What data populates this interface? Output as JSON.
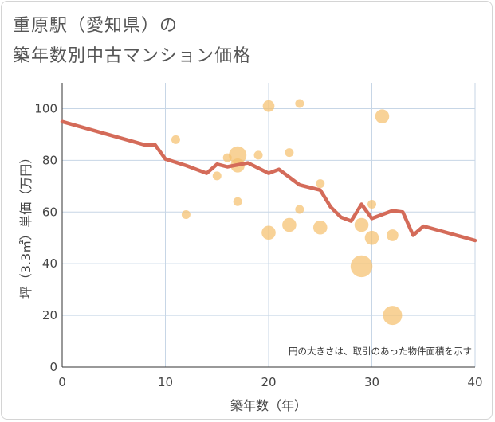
{
  "title_lines": [
    "重原駅（愛知県）の",
    "築年数別中古マンション価格"
  ],
  "chart_data": {
    "type": "scatter",
    "title": "重原駅（愛知県）の築年数別中古マンション価格",
    "xlabel": "築年数（年）",
    "ylabel": "坪（3.3㎡）単価（万円）",
    "xlim": [
      0,
      40
    ],
    "ylim": [
      0,
      110
    ],
    "xticks": [
      0,
      10,
      20,
      30,
      40
    ],
    "yticks": [
      0,
      20,
      40,
      60,
      80,
      100
    ],
    "grid": true,
    "annotation": "円の大きさは、取引のあった物件面積を示す",
    "colors": {
      "bubble": "#f5c06f",
      "line": "#d46b59",
      "grid": "#c7d6e6",
      "axis": "#333333",
      "plot_bg": "#ffffff"
    },
    "series": [
      {
        "type": "bubble",
        "points": [
          {
            "x": 11,
            "y": 88,
            "size": 1
          },
          {
            "x": 12,
            "y": 59,
            "size": 1
          },
          {
            "x": 15,
            "y": 74,
            "size": 1
          },
          {
            "x": 16,
            "y": 81,
            "size": 1
          },
          {
            "x": 17,
            "y": 82,
            "size": 5
          },
          {
            "x": 17,
            "y": 78,
            "size": 3
          },
          {
            "x": 17,
            "y": 64,
            "size": 1
          },
          {
            "x": 19,
            "y": 82,
            "size": 1
          },
          {
            "x": 20,
            "y": 101,
            "size": 2
          },
          {
            "x": 20,
            "y": 52,
            "size": 3
          },
          {
            "x": 22,
            "y": 83,
            "size": 1
          },
          {
            "x": 22,
            "y": 55,
            "size": 3
          },
          {
            "x": 23,
            "y": 102,
            "size": 1
          },
          {
            "x": 23,
            "y": 61,
            "size": 1
          },
          {
            "x": 25,
            "y": 71,
            "size": 1
          },
          {
            "x": 25,
            "y": 54,
            "size": 3
          },
          {
            "x": 29,
            "y": 55,
            "size": 3
          },
          {
            "x": 29,
            "y": 39,
            "size": 8
          },
          {
            "x": 30,
            "y": 63,
            "size": 1
          },
          {
            "x": 30,
            "y": 50,
            "size": 3
          },
          {
            "x": 31,
            "y": 97,
            "size": 3
          },
          {
            "x": 32,
            "y": 51,
            "size": 2
          },
          {
            "x": 32,
            "y": 20,
            "size": 6
          }
        ]
      },
      {
        "type": "line",
        "points": [
          {
            "x": 0,
            "y": 95
          },
          {
            "x": 8,
            "y": 86
          },
          {
            "x": 9,
            "y": 86
          },
          {
            "x": 10,
            "y": 80.5
          },
          {
            "x": 12,
            "y": 78
          },
          {
            "x": 14,
            "y": 75
          },
          {
            "x": 15,
            "y": 78.5
          },
          {
            "x": 16,
            "y": 77.5
          },
          {
            "x": 18,
            "y": 79
          },
          {
            "x": 20,
            "y": 75
          },
          {
            "x": 21,
            "y": 76.5
          },
          {
            "x": 23,
            "y": 70.5
          },
          {
            "x": 25,
            "y": 68.5
          },
          {
            "x": 26,
            "y": 62
          },
          {
            "x": 27,
            "y": 58
          },
          {
            "x": 28,
            "y": 56.5
          },
          {
            "x": 29,
            "y": 63
          },
          {
            "x": 30,
            "y": 57.5
          },
          {
            "x": 32,
            "y": 60.5
          },
          {
            "x": 33,
            "y": 60
          },
          {
            "x": 34,
            "y": 51
          },
          {
            "x": 35,
            "y": 54.5
          },
          {
            "x": 40,
            "y": 49
          }
        ]
      }
    ]
  }
}
